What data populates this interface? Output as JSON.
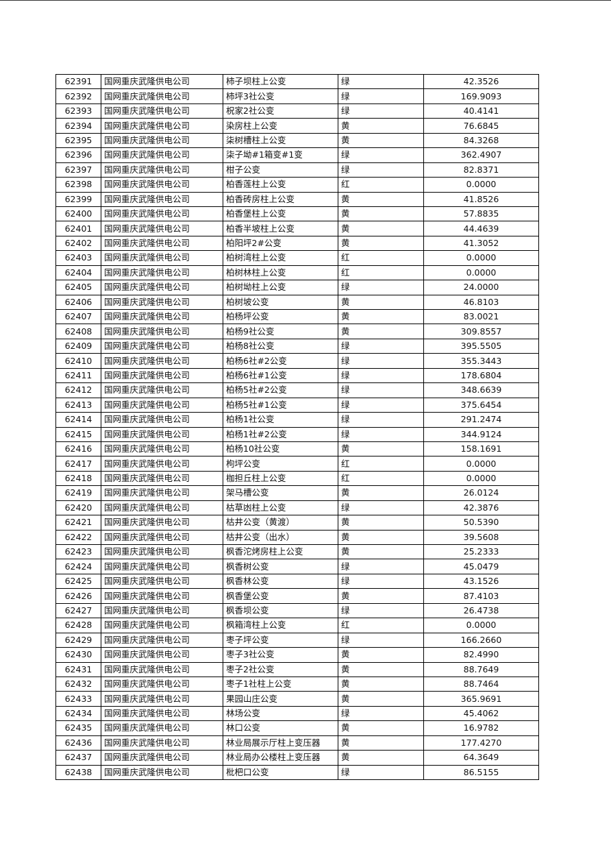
{
  "company": "国网重庆武隆供电公司",
  "rows": [
    {
      "id": "62391",
      "name": "柿子坝柱上公变",
      "status": "绿",
      "value": "42.3526"
    },
    {
      "id": "62392",
      "name": "柿坪3社公变",
      "status": "绿",
      "value": "169.9093"
    },
    {
      "id": "62393",
      "name": "柷家2社公变",
      "status": "绿",
      "value": "40.4141"
    },
    {
      "id": "62394",
      "name": "染房柱上公变",
      "status": "黄",
      "value": "76.6845"
    },
    {
      "id": "62395",
      "name": "柒树槽柱上公变",
      "status": "黄",
      "value": "84.3268"
    },
    {
      "id": "62396",
      "name": "柒子坳#1箱变#1变",
      "status": "绿",
      "value": "362.4907"
    },
    {
      "id": "62397",
      "name": "柑子公变",
      "status": "绿",
      "value": "82.8371"
    },
    {
      "id": "62398",
      "name": "柏香莲柱上公变",
      "status": "红",
      "value": "0.0000"
    },
    {
      "id": "62399",
      "name": "柏香砖房柱上公变",
      "status": "黄",
      "value": "41.8526"
    },
    {
      "id": "62400",
      "name": "柏香堡柱上公变",
      "status": "黄",
      "value": "57.8835"
    },
    {
      "id": "62401",
      "name": "柏香半坡柱上公变",
      "status": "黄",
      "value": "44.4639"
    },
    {
      "id": "62402",
      "name": "柏阳坪2#公变",
      "status": "黄",
      "value": "41.3052"
    },
    {
      "id": "62403",
      "name": "柏树湾柱上公变",
      "status": "红",
      "value": "0.0000"
    },
    {
      "id": "62404",
      "name": "柏树林柱上公变",
      "status": "红",
      "value": "0.0000"
    },
    {
      "id": "62405",
      "name": "柏树坳柱上公变",
      "status": "绿",
      "value": "24.0000"
    },
    {
      "id": "62406",
      "name": "柏树坡公变",
      "status": "黄",
      "value": "46.8103"
    },
    {
      "id": "62407",
      "name": "柏杨坪公变",
      "status": "黄",
      "value": "83.0021"
    },
    {
      "id": "62408",
      "name": "柏杨9社公变",
      "status": "黄",
      "value": "309.8557"
    },
    {
      "id": "62409",
      "name": "柏杨8社公变",
      "status": "绿",
      "value": "395.5505"
    },
    {
      "id": "62410",
      "name": "柏杨6社#2公变",
      "status": "绿",
      "value": "355.3443"
    },
    {
      "id": "62411",
      "name": "柏杨6社#1公变",
      "status": "绿",
      "value": "178.6804"
    },
    {
      "id": "62412",
      "name": "柏杨5社#2公变",
      "status": "绿",
      "value": "348.6639"
    },
    {
      "id": "62413",
      "name": "柏杨5社#1公变",
      "status": "绿",
      "value": "375.6454"
    },
    {
      "id": "62414",
      "name": "柏杨1社公变",
      "status": "绿",
      "value": "291.2474"
    },
    {
      "id": "62415",
      "name": "柏杨1社#2公变",
      "status": "绿",
      "value": "344.9124"
    },
    {
      "id": "62416",
      "name": "柏杨10社公变",
      "status": "黄",
      "value": "158.1691"
    },
    {
      "id": "62417",
      "name": "枸坪公变",
      "status": "红",
      "value": "0.0000"
    },
    {
      "id": "62418",
      "name": "枷担丘柱上公变",
      "status": "红",
      "value": "0.0000"
    },
    {
      "id": "62419",
      "name": "架马槽公变",
      "status": "黄",
      "value": "26.0124"
    },
    {
      "id": "62420",
      "name": "枯草凼柱上公变",
      "status": "绿",
      "value": "42.3876"
    },
    {
      "id": "62421",
      "name": "枯井公变（黄渡）",
      "status": "黄",
      "value": "50.5390"
    },
    {
      "id": "62422",
      "name": "枯井公变（出水）",
      "status": "黄",
      "value": "39.5608"
    },
    {
      "id": "62423",
      "name": "枫香沱烤房柱上公变",
      "status": "黄",
      "value": "25.2333"
    },
    {
      "id": "62424",
      "name": "枫香树公变",
      "status": "绿",
      "value": "45.0479"
    },
    {
      "id": "62425",
      "name": "枫香林公变",
      "status": "绿",
      "value": "43.1526"
    },
    {
      "id": "62426",
      "name": "枫香堡公变",
      "status": "黄",
      "value": "87.4103"
    },
    {
      "id": "62427",
      "name": "枫香坝公变",
      "status": "绿",
      "value": "26.4738"
    },
    {
      "id": "62428",
      "name": "枫箱湾柱上公变",
      "status": "红",
      "value": "0.0000"
    },
    {
      "id": "62429",
      "name": "枣子坪公变",
      "status": "绿",
      "value": "166.2660"
    },
    {
      "id": "62430",
      "name": "枣子3社公变",
      "status": "黄",
      "value": "82.4990"
    },
    {
      "id": "62431",
      "name": "枣子2社公变",
      "status": "黄",
      "value": "88.7649"
    },
    {
      "id": "62432",
      "name": "枣子1社柱上公变",
      "status": "黄",
      "value": "88.7464"
    },
    {
      "id": "62433",
      "name": "果园山庄公变",
      "status": "黄",
      "value": "365.9691"
    },
    {
      "id": "62434",
      "name": "林场公变",
      "status": "绿",
      "value": "45.4062"
    },
    {
      "id": "62435",
      "name": "林口公变",
      "status": "黄",
      "value": "16.9782"
    },
    {
      "id": "62436",
      "name": "林业局展示厅柱上变压器",
      "status": "黄",
      "value": "177.4270"
    },
    {
      "id": "62437",
      "name": "林业局办公楼柱上变压器",
      "status": "黄",
      "value": "64.3649"
    },
    {
      "id": "62438",
      "name": "枇杷口公变",
      "status": "绿",
      "value": "86.5155"
    }
  ]
}
